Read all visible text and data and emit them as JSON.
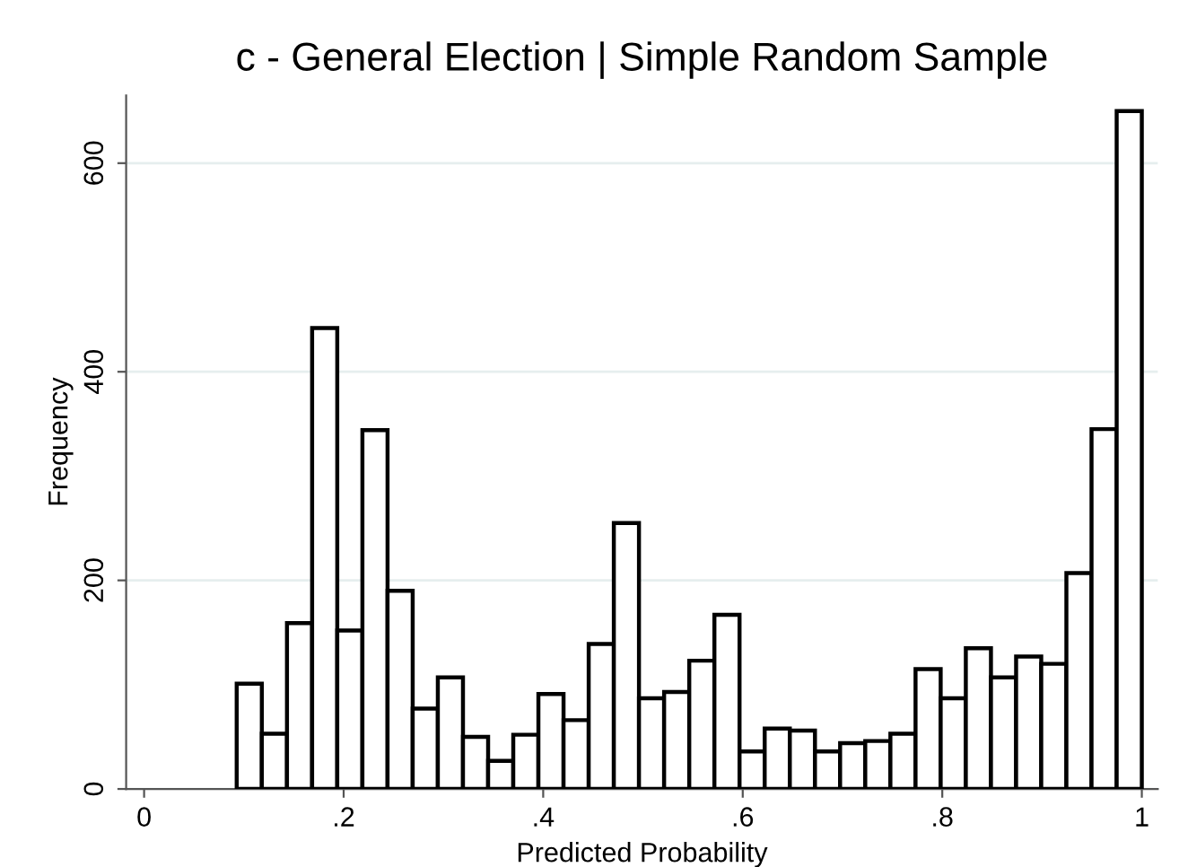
{
  "chart_data": {
    "type": "histogram",
    "title": "c - General Election | Simple Random Sample",
    "xlabel": "Predicted Probability",
    "ylabel": "Frequency",
    "bins": [
      0.0928,
      0.118,
      0.1432,
      0.1684,
      0.1936,
      0.2188,
      0.244,
      0.2692,
      0.2944,
      0.3196,
      0.3448,
      0.37,
      0.3952,
      0.4204,
      0.4456,
      0.4708,
      0.496,
      0.5212,
      0.5464,
      0.5716,
      0.5968,
      0.622,
      0.6472,
      0.6724,
      0.6976,
      0.7228,
      0.748,
      0.7732,
      0.7984,
      0.8236,
      0.8488,
      0.874,
      0.8992,
      0.9244,
      0.9496,
      0.9748,
      1.0
    ],
    "values": [
      101,
      53,
      159,
      442,
      152,
      344,
      190,
      77,
      107,
      50,
      27,
      52,
      91,
      66,
      139,
      255,
      87,
      93,
      123,
      167,
      36,
      58,
      56,
      36,
      44,
      46,
      53,
      115,
      87,
      135,
      107,
      127,
      120,
      207,
      345,
      650
    ],
    "color": "#ffffff",
    "xlim": [
      -0.018,
      1.016
    ],
    "ylim": [
      0,
      665
    ],
    "xticks": [
      {
        "value": 0,
        "label": "0"
      },
      {
        "value": 0.2,
        "label": ".2"
      },
      {
        "value": 0.4,
        "label": ".4"
      },
      {
        "value": 0.6,
        "label": ".6"
      },
      {
        "value": 0.8,
        "label": ".8"
      },
      {
        "value": 1,
        "label": "1"
      }
    ],
    "yticks": [
      0,
      200,
      400,
      600
    ],
    "grid": "y"
  }
}
